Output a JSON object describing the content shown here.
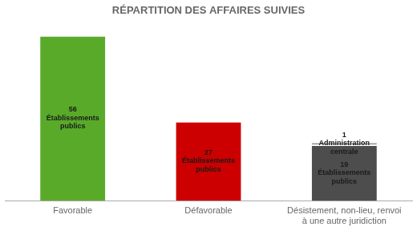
{
  "chart_data": {
    "type": "bar",
    "stacked": true,
    "title": "RÉPARTITION DES AFFAIRES SUIVIES",
    "categories": [
      "Favorable",
      "Défavorable",
      "Désistement, non-lieu, renvoi\nà une autre juridiction"
    ],
    "series": [
      {
        "values": [
          56,
          27,
          19
        ],
        "colors": [
          "#5aaa2a",
          "#cc0000",
          "#4d4d4d"
        ],
        "value_labels": [
          "56\nÉtablissements\npublics",
          "27\nÉtablissements\npublics",
          "19\nÉtablissements\npublics"
        ]
      },
      {
        "values": [
          null,
          null,
          1
        ],
        "colors": [
          null,
          null,
          "#999999"
        ],
        "value_labels": [
          null,
          null,
          "1\nAdministration\ncentrale"
        ]
      }
    ],
    "ylim": [
      0,
      60
    ],
    "data_labels": true,
    "tick_labels": "x",
    "grid": false
  }
}
